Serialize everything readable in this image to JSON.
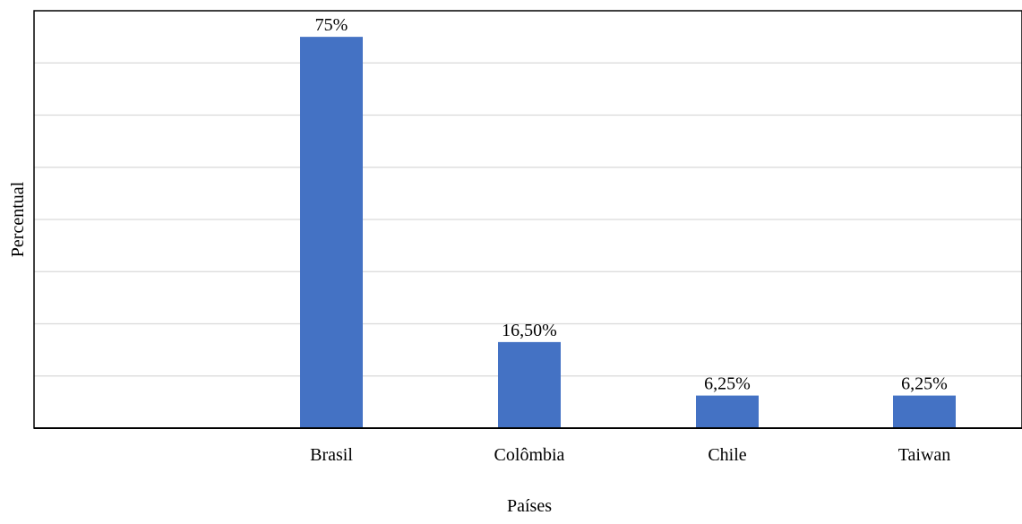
{
  "chart_data": {
    "type": "bar",
    "categories": [
      "Brasil",
      "Colômbia",
      "Chile",
      "Taiwan"
    ],
    "values": [
      75,
      16.5,
      6.25,
      6.25
    ],
    "data_labels": [
      "75%",
      "16,50%",
      "6,25%",
      "6,25%"
    ],
    "xlabel": "Países",
    "ylabel": "Percentual",
    "ylim": [
      0,
      80
    ],
    "grid": true,
    "legend": "none",
    "bar_color": "#4472C4",
    "grid_color": "#D9D9D9",
    "axis_color": "#000000"
  }
}
